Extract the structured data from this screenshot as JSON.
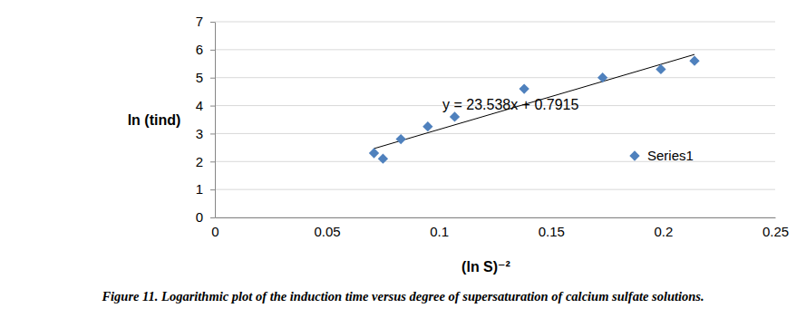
{
  "chart_data": {
    "type": "scatter",
    "y_label": "ln (tind)",
    "x_label": "(ln S)⁻²",
    "caption": "Figure 11. Logarithmic plot of the induction time versus degree of supersaturation of calcium sulfate solutions.",
    "series": [
      {
        "name": "Series1",
        "color": "#4f81bd",
        "marker": "diamond",
        "x": [
          0.071,
          0.075,
          0.083,
          0.095,
          0.107,
          0.138,
          0.173,
          0.199,
          0.214
        ],
        "values": [
          2.3,
          2.1,
          2.8,
          3.25,
          3.6,
          4.6,
          5.0,
          5.3,
          5.6
        ]
      }
    ],
    "trendline": {
      "label": "y = 23.538x + 0.7915",
      "color": "#000000",
      "line_style": "solid",
      "x": [
        0.071,
        0.214
      ],
      "values": [
        2.463,
        5.829
      ]
    },
    "xlim": [
      0,
      0.25
    ],
    "xticks": [
      0,
      0.05,
      0.1,
      0.15,
      0.2,
      0.25
    ],
    "ylim": [
      0,
      7
    ],
    "yticks": [
      0,
      1,
      2,
      3,
      4,
      5,
      6,
      7
    ],
    "grid": true,
    "legend": "right"
  }
}
